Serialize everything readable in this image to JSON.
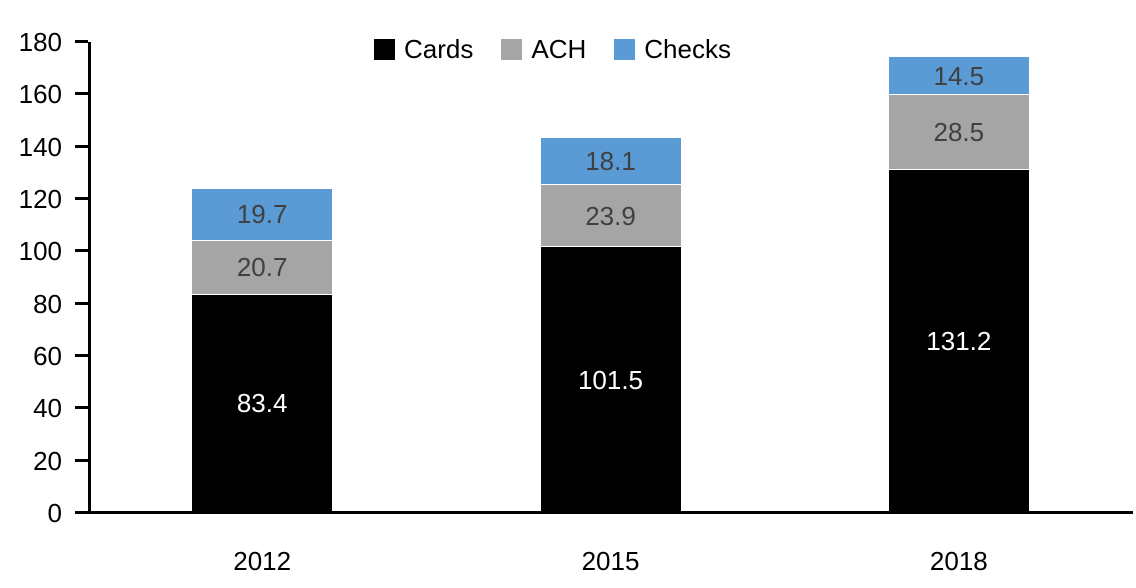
{
  "chart_data": {
    "type": "bar",
    "stacked": true,
    "title": "",
    "xlabel": "",
    "ylabel": "",
    "categories": [
      "2012",
      "2015",
      "2018"
    ],
    "series": [
      {
        "name": "Cards",
        "color": "#000000",
        "label_color": "#ffffff",
        "values": [
          83.4,
          101.5,
          131.2
        ]
      },
      {
        "name": "ACH",
        "color": "#a5a5a5",
        "label_color": "#404040",
        "values": [
          20.7,
          23.9,
          28.5
        ]
      },
      {
        "name": "Checks",
        "color": "#5b9bd5",
        "label_color": "#404040",
        "values": [
          19.7,
          18.1,
          14.5
        ]
      }
    ],
    "totals": [
      123.8,
      143.5,
      174.2
    ],
    "ylim": [
      0,
      180
    ],
    "yticks": [
      0,
      20,
      40,
      60,
      80,
      100,
      120,
      140,
      160,
      180
    ],
    "grid": false,
    "legend_position": "top",
    "legend_entries": [
      "Cards",
      "ACH",
      "Checks"
    ],
    "axis_color": "#000000",
    "background_color": "#ffffff"
  }
}
